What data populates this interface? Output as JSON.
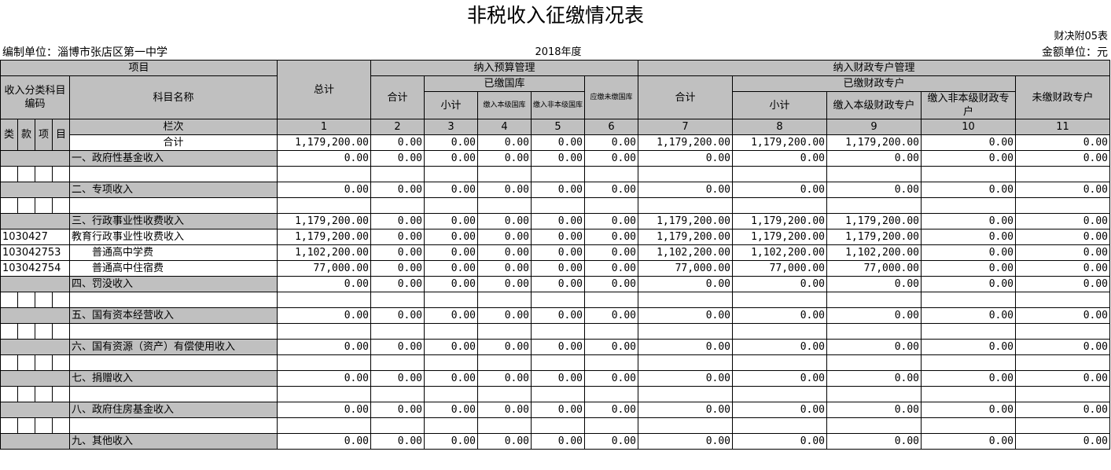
{
  "title": "非税收入征缴情况表",
  "form_no": "财决附05表",
  "unit_label": "编制单位：淄博市张店区第一中学",
  "year": "2018年度",
  "amount_unit": "金额单位：元",
  "headers": {
    "item": "项目",
    "code_group": "收入分类科目编码",
    "subject_name": "科目名称",
    "total": "总计",
    "budget_mgmt": "纳入预算管理",
    "budget_sum": "合计",
    "treasury_paid": "已缴国库",
    "subtotal": "小计",
    "local_treasury": "缴入本级国库",
    "nonlocal_treasury": "缴入非本级国库",
    "due_treasury": "应缴未缴国库",
    "special_mgmt": "纳入财政专户管理",
    "special_sum": "合计",
    "special_paid": "已缴财政专户",
    "special_subtotal": "小计",
    "special_local": "缴入本级财政专户",
    "special_nonlocal": "缴入非本级财政专户",
    "special_unpaid": "未缴财政专户",
    "lei": "类",
    "kuan": "款",
    "xiang": "项",
    "mu": "目",
    "row_label": "栏次",
    "col_numbers": [
      "1",
      "2",
      "3",
      "4",
      "5",
      "6",
      "7",
      "8",
      "9",
      "10",
      "11"
    ]
  },
  "rows": [
    {
      "code": "",
      "name": "合计",
      "center": true,
      "gray": false,
      "values": [
        "1,179,200.00",
        "0.00",
        "0.00",
        "0.00",
        "0.00",
        "0.00",
        "1,179,200.00",
        "1,179,200.00",
        "1,179,200.00",
        "0.00",
        "0.00"
      ]
    },
    {
      "code": "",
      "name": "一、政府性基金收入",
      "gray": true,
      "values": [
        "0.00",
        "0.00",
        "0.00",
        "0.00",
        "0.00",
        "0.00",
        "0.00",
        "0.00",
        "0.00",
        "0.00",
        "0.00"
      ]
    },
    {
      "blank": true
    },
    {
      "code": "",
      "name": "二、专项收入",
      "gray": true,
      "values": [
        "0.00",
        "0.00",
        "0.00",
        "0.00",
        "0.00",
        "0.00",
        "0.00",
        "0.00",
        "0.00",
        "0.00",
        "0.00"
      ]
    },
    {
      "blank": true
    },
    {
      "code": "",
      "name": "三、行政事业性收费收入",
      "gray": true,
      "values": [
        "1,179,200.00",
        "0.00",
        "0.00",
        "0.00",
        "0.00",
        "0.00",
        "1,179,200.00",
        "1,179,200.00",
        "1,179,200.00",
        "0.00",
        "0.00"
      ]
    },
    {
      "code": "1030427",
      "name": "教育行政事业性收费收入",
      "gray": false,
      "values": [
        "1,179,200.00",
        "0.00",
        "0.00",
        "0.00",
        "0.00",
        "0.00",
        "1,179,200.00",
        "1,179,200.00",
        "1,179,200.00",
        "0.00",
        "0.00"
      ]
    },
    {
      "code": "103042753",
      "name": "　　普通高中学费",
      "gray": false,
      "values": [
        "1,102,200.00",
        "0.00",
        "0.00",
        "0.00",
        "0.00",
        "0.00",
        "1,102,200.00",
        "1,102,200.00",
        "1,102,200.00",
        "0.00",
        "0.00"
      ]
    },
    {
      "code": "103042754",
      "name": "　　普通高中住宿费",
      "gray": false,
      "values": [
        "77,000.00",
        "0.00",
        "0.00",
        "0.00",
        "0.00",
        "0.00",
        "77,000.00",
        "77,000.00",
        "77,000.00",
        "0.00",
        "0.00"
      ]
    },
    {
      "code": "",
      "name": "四、罚没收入",
      "gray": true,
      "values": [
        "0.00",
        "0.00",
        "0.00",
        "0.00",
        "0.00",
        "0.00",
        "0.00",
        "0.00",
        "0.00",
        "0.00",
        "0.00"
      ]
    },
    {
      "blank": true
    },
    {
      "code": "",
      "name": "五、国有资本经营收入",
      "gray": true,
      "values": [
        "0.00",
        "0.00",
        "0.00",
        "0.00",
        "0.00",
        "0.00",
        "0.00",
        "0.00",
        "0.00",
        "0.00",
        "0.00"
      ]
    },
    {
      "blank": true
    },
    {
      "code": "",
      "name": "六、国有资源（资产）有偿使用收入",
      "gray": true,
      "values": [
        "0.00",
        "0.00",
        "0.00",
        "0.00",
        "0.00",
        "0.00",
        "0.00",
        "0.00",
        "0.00",
        "0.00",
        "0.00"
      ]
    },
    {
      "blank": true
    },
    {
      "code": "",
      "name": "七、捐赠收入",
      "gray": true,
      "values": [
        "0.00",
        "0.00",
        "0.00",
        "0.00",
        "0.00",
        "0.00",
        "0.00",
        "0.00",
        "0.00",
        "0.00",
        "0.00"
      ]
    },
    {
      "blank": true
    },
    {
      "code": "",
      "name": "八、政府住房基金收入",
      "gray": true,
      "values": [
        "0.00",
        "0.00",
        "0.00",
        "0.00",
        "0.00",
        "0.00",
        "0.00",
        "0.00",
        "0.00",
        "0.00",
        "0.00"
      ]
    },
    {
      "blank": true
    },
    {
      "code": "",
      "name": "九、其他收入",
      "gray": true,
      "values": [
        "0.00",
        "0.00",
        "0.00",
        "0.00",
        "0.00",
        "0.00",
        "0.00",
        "0.00",
        "0.00",
        "0.00",
        "0.00"
      ]
    }
  ]
}
